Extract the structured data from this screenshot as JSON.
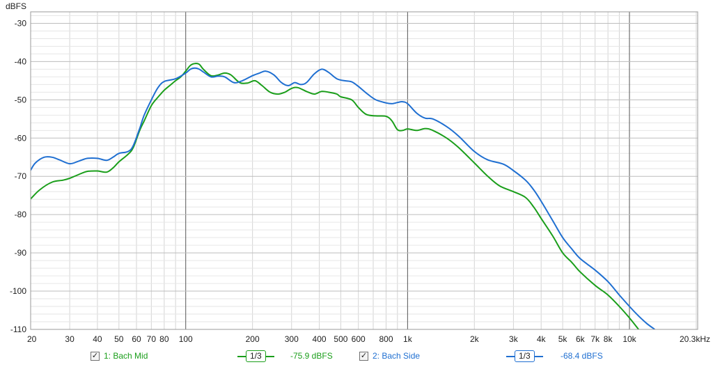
{
  "chart_data": {
    "type": "line",
    "ylabel": "dBFS",
    "xscale": "log",
    "xlim": [
      20,
      20300
    ],
    "ylim": [
      -110,
      -27
    ],
    "grid": true,
    "x_ticks": [
      {
        "value": 20,
        "label": "20"
      },
      {
        "value": 30,
        "label": "30"
      },
      {
        "value": 40,
        "label": "40"
      },
      {
        "value": 50,
        "label": "50"
      },
      {
        "value": 60,
        "label": "60"
      },
      {
        "value": 70,
        "label": "70"
      },
      {
        "value": 80,
        "label": "80"
      },
      {
        "value": 100,
        "label": "100"
      },
      {
        "value": 200,
        "label": "200"
      },
      {
        "value": 300,
        "label": "300"
      },
      {
        "value": 400,
        "label": "400"
      },
      {
        "value": 500,
        "label": "500"
      },
      {
        "value": 600,
        "label": "600"
      },
      {
        "value": 800,
        "label": "800"
      },
      {
        "value": 1000,
        "label": "1k"
      },
      {
        "value": 2000,
        "label": "2k"
      },
      {
        "value": 3000,
        "label": "3k"
      },
      {
        "value": 4000,
        "label": "4k"
      },
      {
        "value": 5000,
        "label": "5k"
      },
      {
        "value": 6000,
        "label": "6k"
      },
      {
        "value": 7000,
        "label": "7k"
      },
      {
        "value": 8000,
        "label": "8k"
      },
      {
        "value": 10000,
        "label": "10k"
      },
      {
        "value": 20300,
        "label": "20.3kHz"
      }
    ],
    "y_ticks": [
      -30,
      -40,
      -50,
      -60,
      -70,
      -80,
      -90,
      -100,
      -110
    ],
    "series": [
      {
        "name": "1: Bach Mid",
        "color": "#1a9e1a",
        "points": [
          [
            20,
            -75.9
          ],
          [
            22,
            -73.5
          ],
          [
            25,
            -71.5
          ],
          [
            28,
            -71
          ],
          [
            30,
            -70.5
          ],
          [
            33,
            -69.5
          ],
          [
            36,
            -68.7
          ],
          [
            40,
            -68.6
          ],
          [
            44,
            -68.9
          ],
          [
            47,
            -67.8
          ],
          [
            50,
            -66.2
          ],
          [
            55,
            -64.2
          ],
          [
            58,
            -62.5
          ],
          [
            62,
            -58
          ],
          [
            65,
            -55.5
          ],
          [
            70,
            -51.5
          ],
          [
            75,
            -49.3
          ],
          [
            80,
            -47.5
          ],
          [
            85,
            -46.2
          ],
          [
            90,
            -45
          ],
          [
            95,
            -44
          ],
          [
            100,
            -42.5
          ],
          [
            105,
            -41
          ],
          [
            110,
            -40.5
          ],
          [
            115,
            -40.7
          ],
          [
            120,
            -42
          ],
          [
            130,
            -43.7
          ],
          [
            140,
            -43.5
          ],
          [
            150,
            -43
          ],
          [
            160,
            -43.5
          ],
          [
            175,
            -45.5
          ],
          [
            190,
            -45.6
          ],
          [
            205,
            -45
          ],
          [
            220,
            -46.2
          ],
          [
            240,
            -48
          ],
          [
            260,
            -48.5
          ],
          [
            280,
            -48
          ],
          [
            300,
            -47
          ],
          [
            320,
            -46.8
          ],
          [
            350,
            -47.8
          ],
          [
            380,
            -48.5
          ],
          [
            410,
            -47.8
          ],
          [
            440,
            -48
          ],
          [
            480,
            -48.5
          ],
          [
            500,
            -49.2
          ],
          [
            560,
            -50
          ],
          [
            600,
            -52
          ],
          [
            650,
            -53.8
          ],
          [
            720,
            -54.2
          ],
          [
            800,
            -54.3
          ],
          [
            850,
            -55.5
          ],
          [
            900,
            -57.8
          ],
          [
            950,
            -58
          ],
          [
            1000,
            -57.6
          ],
          [
            1100,
            -58
          ],
          [
            1200,
            -57.5
          ],
          [
            1300,
            -58
          ],
          [
            1500,
            -60
          ],
          [
            1700,
            -62.5
          ],
          [
            2000,
            -66.5
          ],
          [
            2300,
            -70
          ],
          [
            2600,
            -72.5
          ],
          [
            3000,
            -74
          ],
          [
            3400,
            -75.5
          ],
          [
            3700,
            -78
          ],
          [
            4000,
            -81
          ],
          [
            4500,
            -85.5
          ],
          [
            5000,
            -90
          ],
          [
            5500,
            -92.5
          ],
          [
            6000,
            -95
          ],
          [
            7000,
            -98.5
          ],
          [
            8000,
            -101
          ],
          [
            9000,
            -104
          ],
          [
            10000,
            -107
          ],
          [
            11000,
            -110
          ]
        ]
      },
      {
        "name": "2: Bach Side",
        "color": "#1f6fd1",
        "points": [
          [
            20,
            -68.4
          ],
          [
            21,
            -66.5
          ],
          [
            23,
            -65
          ],
          [
            25,
            -65
          ],
          [
            27,
            -65.7
          ],
          [
            30,
            -66.7
          ],
          [
            33,
            -66
          ],
          [
            36,
            -65.3
          ],
          [
            40,
            -65.3
          ],
          [
            44,
            -65.8
          ],
          [
            47,
            -65
          ],
          [
            50,
            -64
          ],
          [
            55,
            -63.5
          ],
          [
            58,
            -62
          ],
          [
            62,
            -57.5
          ],
          [
            65,
            -54
          ],
          [
            70,
            -50
          ],
          [
            75,
            -46.8
          ],
          [
            80,
            -45.2
          ],
          [
            90,
            -44.5
          ],
          [
            100,
            -43
          ],
          [
            105,
            -42
          ],
          [
            110,
            -41.7
          ],
          [
            115,
            -42
          ],
          [
            120,
            -42.7
          ],
          [
            130,
            -44
          ],
          [
            140,
            -43.8
          ],
          [
            150,
            -44
          ],
          [
            165,
            -45.5
          ],
          [
            180,
            -45
          ],
          [
            200,
            -43.7
          ],
          [
            215,
            -43
          ],
          [
            230,
            -42.5
          ],
          [
            250,
            -43.5
          ],
          [
            270,
            -45.5
          ],
          [
            290,
            -46.3
          ],
          [
            310,
            -45.5
          ],
          [
            330,
            -46
          ],
          [
            350,
            -45.5
          ],
          [
            380,
            -43.2
          ],
          [
            410,
            -42
          ],
          [
            440,
            -42.8
          ],
          [
            480,
            -44.5
          ],
          [
            520,
            -45
          ],
          [
            560,
            -45.3
          ],
          [
            600,
            -46.5
          ],
          [
            660,
            -48.5
          ],
          [
            720,
            -50
          ],
          [
            800,
            -50.8
          ],
          [
            850,
            -51
          ],
          [
            900,
            -50.7
          ],
          [
            950,
            -50.5
          ],
          [
            1000,
            -51
          ],
          [
            1100,
            -53.5
          ],
          [
            1200,
            -54.8
          ],
          [
            1300,
            -55
          ],
          [
            1500,
            -57
          ],
          [
            1700,
            -59.5
          ],
          [
            2000,
            -63.5
          ],
          [
            2300,
            -65.7
          ],
          [
            2700,
            -66.8
          ],
          [
            3000,
            -68.5
          ],
          [
            3400,
            -71
          ],
          [
            3700,
            -73.5
          ],
          [
            4000,
            -76.5
          ],
          [
            4500,
            -81.5
          ],
          [
            5000,
            -86
          ],
          [
            5500,
            -89
          ],
          [
            6000,
            -91.5
          ],
          [
            7000,
            -94.5
          ],
          [
            8000,
            -97.5
          ],
          [
            9000,
            -101
          ],
          [
            10000,
            -104
          ],
          [
            11000,
            -106.5
          ],
          [
            12000,
            -108.5
          ],
          [
            13000,
            -110
          ]
        ]
      }
    ]
  },
  "legend": [
    {
      "label": "1: Bach Mid",
      "smoothing": "1/3",
      "level": "-75.9 dBFS",
      "color": "#1a9e1a"
    },
    {
      "label": "2: Bach Side",
      "smoothing": "1/3",
      "level": "-68.4 dBFS",
      "color": "#1f6fd1"
    }
  ]
}
